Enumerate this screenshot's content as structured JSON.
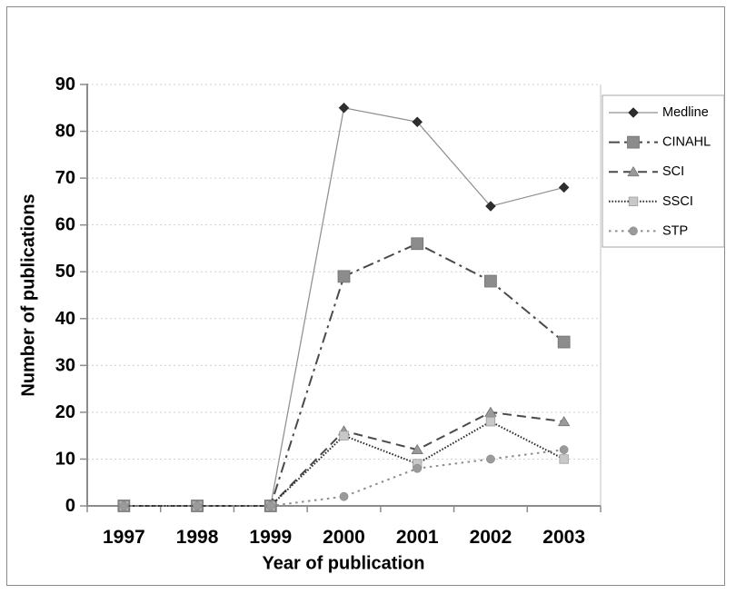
{
  "colors": {
    "background": "#ffffff",
    "axis": "#8c8c8c",
    "gridline": "#cfcfcf",
    "plot_border": "#c0c0c0",
    "figure_border": "#8a8a8a",
    "legend_border": "#a6a6a6",
    "text": "#000000"
  },
  "chart_data": {
    "type": "line",
    "title": "",
    "xlabel": "Year of publication",
    "ylabel": "Number of publications",
    "categories": [
      "1997",
      "1998",
      "1999",
      "2000",
      "2001",
      "2002",
      "2003"
    ],
    "yticks": [
      0,
      10,
      20,
      30,
      40,
      50,
      60,
      70,
      80,
      90
    ],
    "ylim": [
      0,
      90
    ],
    "grid": "horizontal dotted",
    "legend_position": "right",
    "series": [
      {
        "name": "Medline",
        "values": [
          0,
          0,
          0,
          85,
          82,
          64,
          68
        ],
        "line_style": "solid",
        "line_color": "#909090",
        "marker": "diamond",
        "marker_color": "#2e2e2e",
        "marker_outline": "#1a1a1a"
      },
      {
        "name": "CINAHL",
        "values": [
          0,
          0,
          0,
          49,
          56,
          48,
          35
        ],
        "line_style": "dash-dot",
        "line_color": "#4a4a4a",
        "marker": "square",
        "marker_color": "#8c8c8c",
        "marker_outline": "#6f6f6f"
      },
      {
        "name": "SCI",
        "values": [
          0,
          0,
          0,
          16,
          12,
          20,
          18
        ],
        "line_style": "dashed",
        "line_color": "#4a4a4a",
        "marker": "triangle",
        "marker_color": "#9a9a9a",
        "marker_outline": "#707070"
      },
      {
        "name": "SSCI",
        "values": [
          0,
          0,
          0,
          15,
          9,
          18,
          10
        ],
        "line_style": "fine-dotted",
        "line_color": "#2e2e2e",
        "marker": "square-small",
        "marker_color": "#c8c8c8",
        "marker_outline": "#9a9a9a"
      },
      {
        "name": "STP",
        "values": [
          0,
          0,
          0,
          2,
          8,
          10,
          12
        ],
        "line_style": "dotted",
        "line_color": "#8c8c8c",
        "marker": "circle",
        "marker_color": "#9a9a9a",
        "marker_outline": "#7d7d7d"
      }
    ]
  }
}
